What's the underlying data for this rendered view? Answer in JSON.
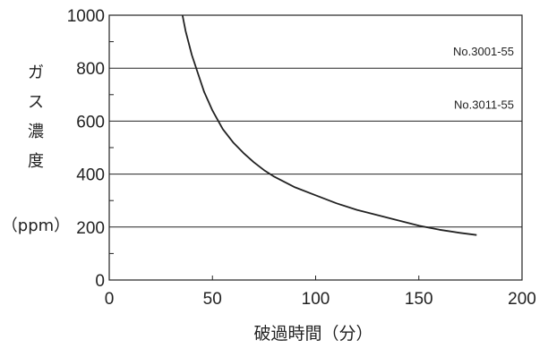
{
  "chart_data": {
    "type": "line",
    "xlabel": "破過時間（分）",
    "ylabel_chars": [
      "ガ",
      "ス",
      "濃",
      "度"
    ],
    "ylabel_unit": "（ppm）",
    "xlim": [
      0,
      200
    ],
    "ylim": [
      0,
      1000
    ],
    "x_ticks": [
      0,
      50,
      100,
      150,
      200
    ],
    "y_ticks": [
      0,
      200,
      400,
      600,
      800,
      1000
    ],
    "grid": "horizontal",
    "series": [
      {
        "x": [
          35.5,
          37,
          40,
          43,
          46,
          50,
          55,
          60,
          65,
          70,
          75,
          80,
          90,
          100,
          110,
          120,
          130,
          140,
          150,
          160,
          170,
          178
        ],
        "values": [
          1000,
          940,
          850,
          780,
          710,
          640,
          570,
          520,
          480,
          445,
          415,
          390,
          350,
          320,
          290,
          265,
          245,
          225,
          205,
          190,
          178,
          170
        ]
      }
    ],
    "annotations": [
      {
        "text": "No.3001-55",
        "y": 800
      },
      {
        "text": "No.3011-55",
        "y": 600
      }
    ]
  }
}
